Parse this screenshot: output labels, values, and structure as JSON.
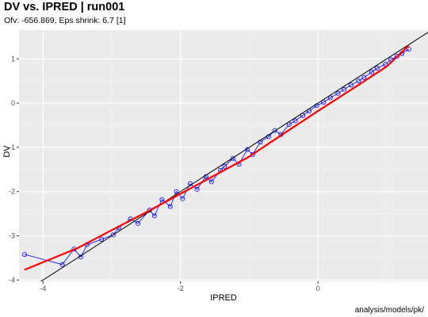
{
  "chart_data": {
    "type": "scatter",
    "title": "DV vs. IPRED | run001",
    "subtitle": "Ofv: -656.869, Eps shrink: 6.7 [1]",
    "xlabel": "IPRED",
    "ylabel": "DV",
    "caption": "analysis/models/pk/",
    "xlim": [
      -4.35,
      1.6
    ],
    "ylim": [
      -4.03,
      1.65
    ],
    "x_ticks": [
      -4,
      -2,
      0
    ],
    "y_ticks": [
      -4,
      -3,
      -2,
      -1,
      0,
      1
    ],
    "grid": true,
    "points_color": "#0000ff",
    "smooth_color": "#ff0000",
    "identity_color": "#000000",
    "panel_background": "#ebebeb",
    "series": [
      {
        "type": "points-connected",
        "x": [
          -4.27,
          -3.72,
          -3.55,
          -3.45,
          -3.36,
          -3.15,
          -2.98,
          -2.9,
          -2.73,
          -2.62,
          -2.45,
          -2.38,
          -2.27,
          -2.15,
          -2.06,
          -1.97,
          -1.86,
          -1.76,
          -1.63,
          -1.55,
          -1.42,
          -1.36,
          -1.24,
          -1.15,
          -1.03,
          -0.95,
          -0.84,
          -0.72,
          -0.63,
          -0.54,
          -0.42,
          -0.33,
          -0.22,
          -0.13,
          -0.02,
          0.08,
          0.18,
          0.29,
          0.38,
          0.48,
          0.59,
          0.67,
          0.78,
          0.86,
          0.98,
          1.06,
          1.15,
          1.22,
          1.32
        ],
        "y": [
          -3.42,
          -3.65,
          -3.3,
          -3.48,
          -3.2,
          -3.08,
          -2.98,
          -2.82,
          -2.62,
          -2.72,
          -2.42,
          -2.55,
          -2.18,
          -2.34,
          -2.0,
          -2.16,
          -1.82,
          -1.95,
          -1.66,
          -1.78,
          -1.52,
          -1.43,
          -1.25,
          -1.38,
          -1.05,
          -1.16,
          -0.88,
          -0.76,
          -0.62,
          -0.71,
          -0.48,
          -0.4,
          -0.28,
          -0.18,
          -0.06,
          0.02,
          0.12,
          0.22,
          0.31,
          0.41,
          0.5,
          0.58,
          0.7,
          0.79,
          0.88,
          0.98,
          1.06,
          1.12,
          1.22
        ]
      }
    ],
    "smooth": {
      "x": [
        -4.27,
        -3.5,
        -3.0,
        -2.5,
        -2.0,
        -1.5,
        -1.0,
        -0.5,
        0.0,
        0.5,
        1.0,
        1.32
      ],
      "y": [
        -3.77,
        -3.28,
        -2.87,
        -2.47,
        -2.05,
        -1.63,
        -1.21,
        -0.69,
        -0.18,
        0.32,
        0.83,
        1.3
      ]
    },
    "identity_line": {
      "x": [
        -4.35,
        1.6
      ],
      "y": [
        -4.35,
        1.6
      ]
    }
  }
}
